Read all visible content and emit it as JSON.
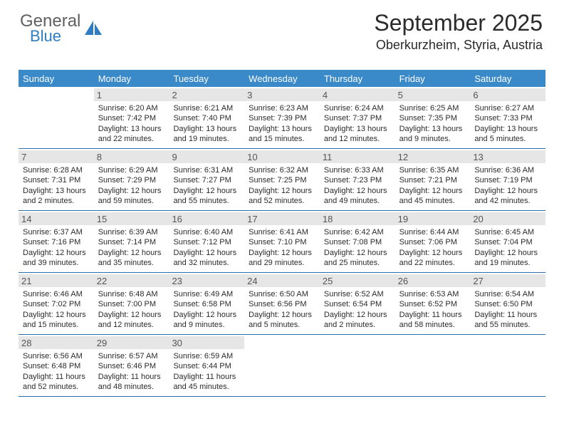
{
  "logo": {
    "line1": "General",
    "line2": "Blue"
  },
  "header": {
    "title": "September 2025",
    "location": "Oberkurzheim, Styria, Austria"
  },
  "colors": {
    "header_bar_bg": "#3a89c9",
    "header_bar_text": "#ffffff",
    "daynum_bg": "#e6e6e6",
    "daynum_text": "#555555",
    "week_separator": "#2d6ea8",
    "logo_gray": "#606060",
    "logo_blue": "#2e7dc2"
  },
  "weekdays": [
    "Sunday",
    "Monday",
    "Tuesday",
    "Wednesday",
    "Thursday",
    "Friday",
    "Saturday"
  ],
  "weeks": [
    [
      null,
      {
        "num": "1",
        "sunrise": "6:20 AM",
        "sunset": "7:42 PM",
        "daylight": "13 hours and 22 minutes."
      },
      {
        "num": "2",
        "sunrise": "6:21 AM",
        "sunset": "7:40 PM",
        "daylight": "13 hours and 19 minutes."
      },
      {
        "num": "3",
        "sunrise": "6:23 AM",
        "sunset": "7:39 PM",
        "daylight": "13 hours and 15 minutes."
      },
      {
        "num": "4",
        "sunrise": "6:24 AM",
        "sunset": "7:37 PM",
        "daylight": "13 hours and 12 minutes."
      },
      {
        "num": "5",
        "sunrise": "6:25 AM",
        "sunset": "7:35 PM",
        "daylight": "13 hours and 9 minutes."
      },
      {
        "num": "6",
        "sunrise": "6:27 AM",
        "sunset": "7:33 PM",
        "daylight": "13 hours and 5 minutes."
      }
    ],
    [
      {
        "num": "7",
        "sunrise": "6:28 AM",
        "sunset": "7:31 PM",
        "daylight": "13 hours and 2 minutes."
      },
      {
        "num": "8",
        "sunrise": "6:29 AM",
        "sunset": "7:29 PM",
        "daylight": "12 hours and 59 minutes."
      },
      {
        "num": "9",
        "sunrise": "6:31 AM",
        "sunset": "7:27 PM",
        "daylight": "12 hours and 55 minutes."
      },
      {
        "num": "10",
        "sunrise": "6:32 AM",
        "sunset": "7:25 PM",
        "daylight": "12 hours and 52 minutes."
      },
      {
        "num": "11",
        "sunrise": "6:33 AM",
        "sunset": "7:23 PM",
        "daylight": "12 hours and 49 minutes."
      },
      {
        "num": "12",
        "sunrise": "6:35 AM",
        "sunset": "7:21 PM",
        "daylight": "12 hours and 45 minutes."
      },
      {
        "num": "13",
        "sunrise": "6:36 AM",
        "sunset": "7:19 PM",
        "daylight": "12 hours and 42 minutes."
      }
    ],
    [
      {
        "num": "14",
        "sunrise": "6:37 AM",
        "sunset": "7:16 PM",
        "daylight": "12 hours and 39 minutes."
      },
      {
        "num": "15",
        "sunrise": "6:39 AM",
        "sunset": "7:14 PM",
        "daylight": "12 hours and 35 minutes."
      },
      {
        "num": "16",
        "sunrise": "6:40 AM",
        "sunset": "7:12 PM",
        "daylight": "12 hours and 32 minutes."
      },
      {
        "num": "17",
        "sunrise": "6:41 AM",
        "sunset": "7:10 PM",
        "daylight": "12 hours and 29 minutes."
      },
      {
        "num": "18",
        "sunrise": "6:42 AM",
        "sunset": "7:08 PM",
        "daylight": "12 hours and 25 minutes."
      },
      {
        "num": "19",
        "sunrise": "6:44 AM",
        "sunset": "7:06 PM",
        "daylight": "12 hours and 22 minutes."
      },
      {
        "num": "20",
        "sunrise": "6:45 AM",
        "sunset": "7:04 PM",
        "daylight": "12 hours and 19 minutes."
      }
    ],
    [
      {
        "num": "21",
        "sunrise": "6:46 AM",
        "sunset": "7:02 PM",
        "daylight": "12 hours and 15 minutes."
      },
      {
        "num": "22",
        "sunrise": "6:48 AM",
        "sunset": "7:00 PM",
        "daylight": "12 hours and 12 minutes."
      },
      {
        "num": "23",
        "sunrise": "6:49 AM",
        "sunset": "6:58 PM",
        "daylight": "12 hours and 9 minutes."
      },
      {
        "num": "24",
        "sunrise": "6:50 AM",
        "sunset": "6:56 PM",
        "daylight": "12 hours and 5 minutes."
      },
      {
        "num": "25",
        "sunrise": "6:52 AM",
        "sunset": "6:54 PM",
        "daylight": "12 hours and 2 minutes."
      },
      {
        "num": "26",
        "sunrise": "6:53 AM",
        "sunset": "6:52 PM",
        "daylight": "11 hours and 58 minutes."
      },
      {
        "num": "27",
        "sunrise": "6:54 AM",
        "sunset": "6:50 PM",
        "daylight": "11 hours and 55 minutes."
      }
    ],
    [
      {
        "num": "28",
        "sunrise": "6:56 AM",
        "sunset": "6:48 PM",
        "daylight": "11 hours and 52 minutes."
      },
      {
        "num": "29",
        "sunrise": "6:57 AM",
        "sunset": "6:46 PM",
        "daylight": "11 hours and 48 minutes."
      },
      {
        "num": "30",
        "sunrise": "6:59 AM",
        "sunset": "6:44 PM",
        "daylight": "11 hours and 45 minutes."
      },
      null,
      null,
      null,
      null
    ]
  ],
  "labels": {
    "sunrise": "Sunrise:",
    "sunset": "Sunset:",
    "daylight": "Daylight:"
  }
}
